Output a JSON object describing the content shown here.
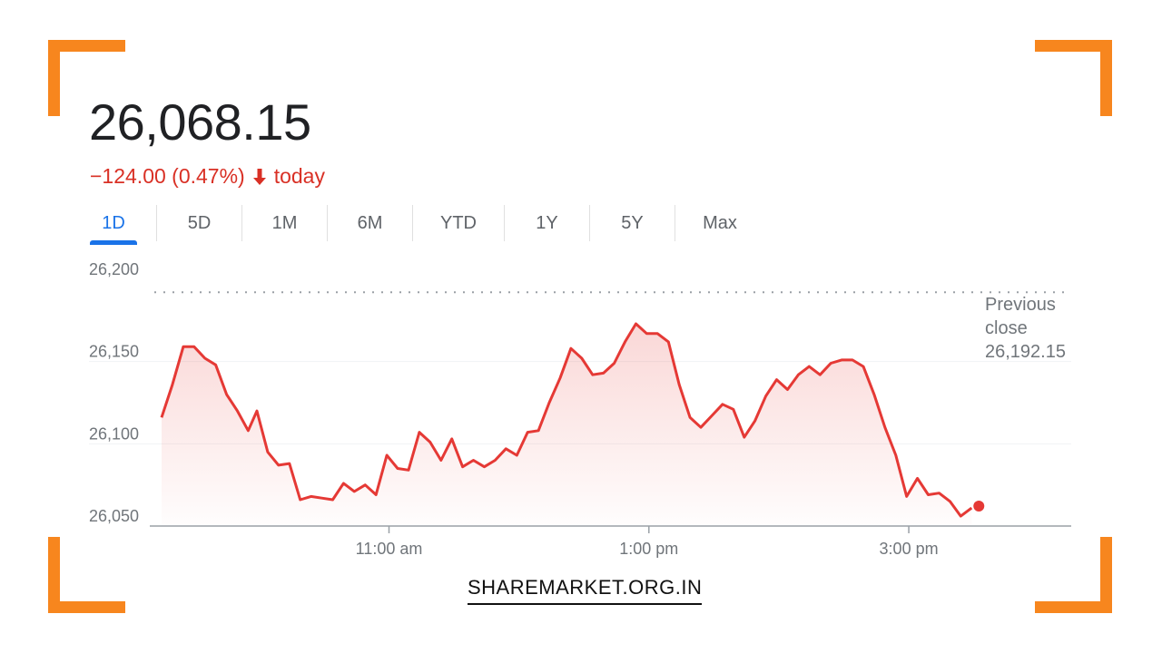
{
  "header": {
    "price": "26,068.15",
    "change_text": "−124.00 (0.47%)",
    "change_suffix": "today",
    "direction_icon": "arrow-down-icon",
    "change_color": "#d93025"
  },
  "tabs": [
    {
      "label": "1D",
      "active": true
    },
    {
      "label": "5D",
      "active": false
    },
    {
      "label": "1M",
      "active": false
    },
    {
      "label": "6M",
      "active": false
    },
    {
      "label": "YTD",
      "active": false
    },
    {
      "label": "1Y",
      "active": false
    },
    {
      "label": "5Y",
      "active": false
    },
    {
      "label": "Max",
      "active": false
    }
  ],
  "chart_data": {
    "type": "line",
    "ylim": [
      26050,
      26200
    ],
    "yticks": [
      26050,
      26100,
      26150,
      26200
    ],
    "ytick_labels": [
      "26,050",
      "26,100",
      "26,150",
      "26,200"
    ],
    "xticks": [
      {
        "label": "11:00 am",
        "minutes": 660
      },
      {
        "label": "1:00 pm",
        "minutes": 780
      },
      {
        "label": "3:00 pm",
        "minutes": 900
      }
    ],
    "xlim_minutes": [
      555,
      975
    ],
    "previous_close": 26192.15,
    "previous_close_lines": [
      "Previous",
      "close",
      "26,192.15"
    ],
    "series": [
      {
        "color": "#e53935",
        "points": [
          {
            "x": 555,
            "y": 26116
          },
          {
            "x": 560,
            "y": 26136
          },
          {
            "x": 565,
            "y": 26159
          },
          {
            "x": 570,
            "y": 26159
          },
          {
            "x": 575,
            "y": 26152
          },
          {
            "x": 580,
            "y": 26148
          },
          {
            "x": 585,
            "y": 26130
          },
          {
            "x": 590,
            "y": 26120
          },
          {
            "x": 595,
            "y": 26108
          },
          {
            "x": 599,
            "y": 26120
          },
          {
            "x": 604,
            "y": 26095
          },
          {
            "x": 609,
            "y": 26087
          },
          {
            "x": 614,
            "y": 26088
          },
          {
            "x": 619,
            "y": 26066
          },
          {
            "x": 624,
            "y": 26068
          },
          {
            "x": 629,
            "y": 26067
          },
          {
            "x": 634,
            "y": 26066
          },
          {
            "x": 639,
            "y": 26076
          },
          {
            "x": 644,
            "y": 26071
          },
          {
            "x": 649,
            "y": 26075
          },
          {
            "x": 654,
            "y": 26069
          },
          {
            "x": 659,
            "y": 26093
          },
          {
            "x": 664,
            "y": 26085
          },
          {
            "x": 669,
            "y": 26084
          },
          {
            "x": 674,
            "y": 26107
          },
          {
            "x": 679,
            "y": 26101
          },
          {
            "x": 684,
            "y": 26090
          },
          {
            "x": 689,
            "y": 26103
          },
          {
            "x": 694,
            "y": 26086
          },
          {
            "x": 699,
            "y": 26090
          },
          {
            "x": 704,
            "y": 26086
          },
          {
            "x": 709,
            "y": 26090
          },
          {
            "x": 714,
            "y": 26097
          },
          {
            "x": 719,
            "y": 26093
          },
          {
            "x": 724,
            "y": 26107
          },
          {
            "x": 729,
            "y": 26108
          },
          {
            "x": 734,
            "y": 26125
          },
          {
            "x": 739,
            "y": 26140
          },
          {
            "x": 744,
            "y": 26158
          },
          {
            "x": 749,
            "y": 26152
          },
          {
            "x": 754,
            "y": 26142
          },
          {
            "x": 759,
            "y": 26143
          },
          {
            "x": 764,
            "y": 26149
          },
          {
            "x": 769,
            "y": 26162
          },
          {
            "x": 774,
            "y": 26173
          },
          {
            "x": 779,
            "y": 26167
          },
          {
            "x": 784,
            "y": 26167
          },
          {
            "x": 789,
            "y": 26162
          },
          {
            "x": 794,
            "y": 26136
          },
          {
            "x": 799,
            "y": 26116
          },
          {
            "x": 804,
            "y": 26110
          },
          {
            "x": 809,
            "y": 26117
          },
          {
            "x": 814,
            "y": 26124
          },
          {
            "x": 819,
            "y": 26121
          },
          {
            "x": 824,
            "y": 26104
          },
          {
            "x": 829,
            "y": 26114
          },
          {
            "x": 834,
            "y": 26129
          },
          {
            "x": 839,
            "y": 26139
          },
          {
            "x": 844,
            "y": 26133
          },
          {
            "x": 849,
            "y": 26142
          },
          {
            "x": 854,
            "y": 26147
          },
          {
            "x": 859,
            "y": 26142
          },
          {
            "x": 864,
            "y": 26149
          },
          {
            "x": 869,
            "y": 26151
          },
          {
            "x": 874,
            "y": 26151
          },
          {
            "x": 879,
            "y": 26147
          },
          {
            "x": 884,
            "y": 26130
          },
          {
            "x": 889,
            "y": 26110
          },
          {
            "x": 894,
            "y": 26093
          },
          {
            "x": 899,
            "y": 26068
          },
          {
            "x": 904,
            "y": 26079
          },
          {
            "x": 909,
            "y": 26069
          },
          {
            "x": 914,
            "y": 26070
          },
          {
            "x": 919,
            "y": 26065
          },
          {
            "x": 924,
            "y": 26056
          },
          {
            "x": 929,
            "y": 26061
          }
        ]
      }
    ]
  },
  "brand": {
    "text": "SHAREMARKET.ORG.IN"
  },
  "colors": {
    "accent": "#f7861e",
    "tab_active": "#1a73e8",
    "line": "#e53935"
  }
}
